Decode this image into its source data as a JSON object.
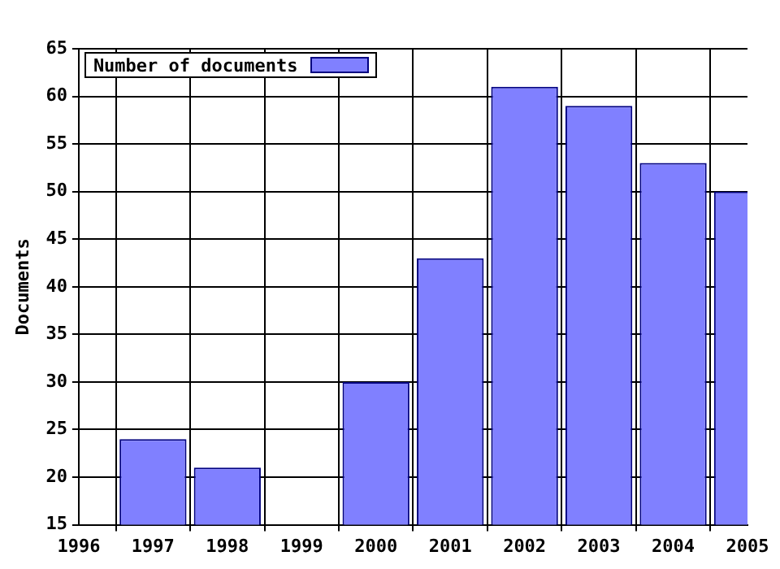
{
  "chart_data": {
    "type": "bar",
    "ylabel": "Documents",
    "x": [
      1997,
      1998,
      1999,
      2000,
      2001,
      2002,
      2003,
      2004,
      2005
    ],
    "series": [
      {
        "name": "Number of documents",
        "color": "#8080ff",
        "values": [
          24,
          21,
          null,
          30,
          43,
          61,
          59,
          53,
          50
        ]
      }
    ],
    "xlim": [
      1996,
      2005
    ],
    "xticks": [
      1996,
      1997,
      1998,
      1999,
      2000,
      2001,
      2002,
      2003,
      2004,
      2005
    ],
    "ylim": [
      15,
      65
    ],
    "yticks": [
      15,
      20,
      25,
      30,
      35,
      40,
      45,
      50,
      55,
      60,
      65
    ],
    "grid": true,
    "legend": "top left"
  }
}
